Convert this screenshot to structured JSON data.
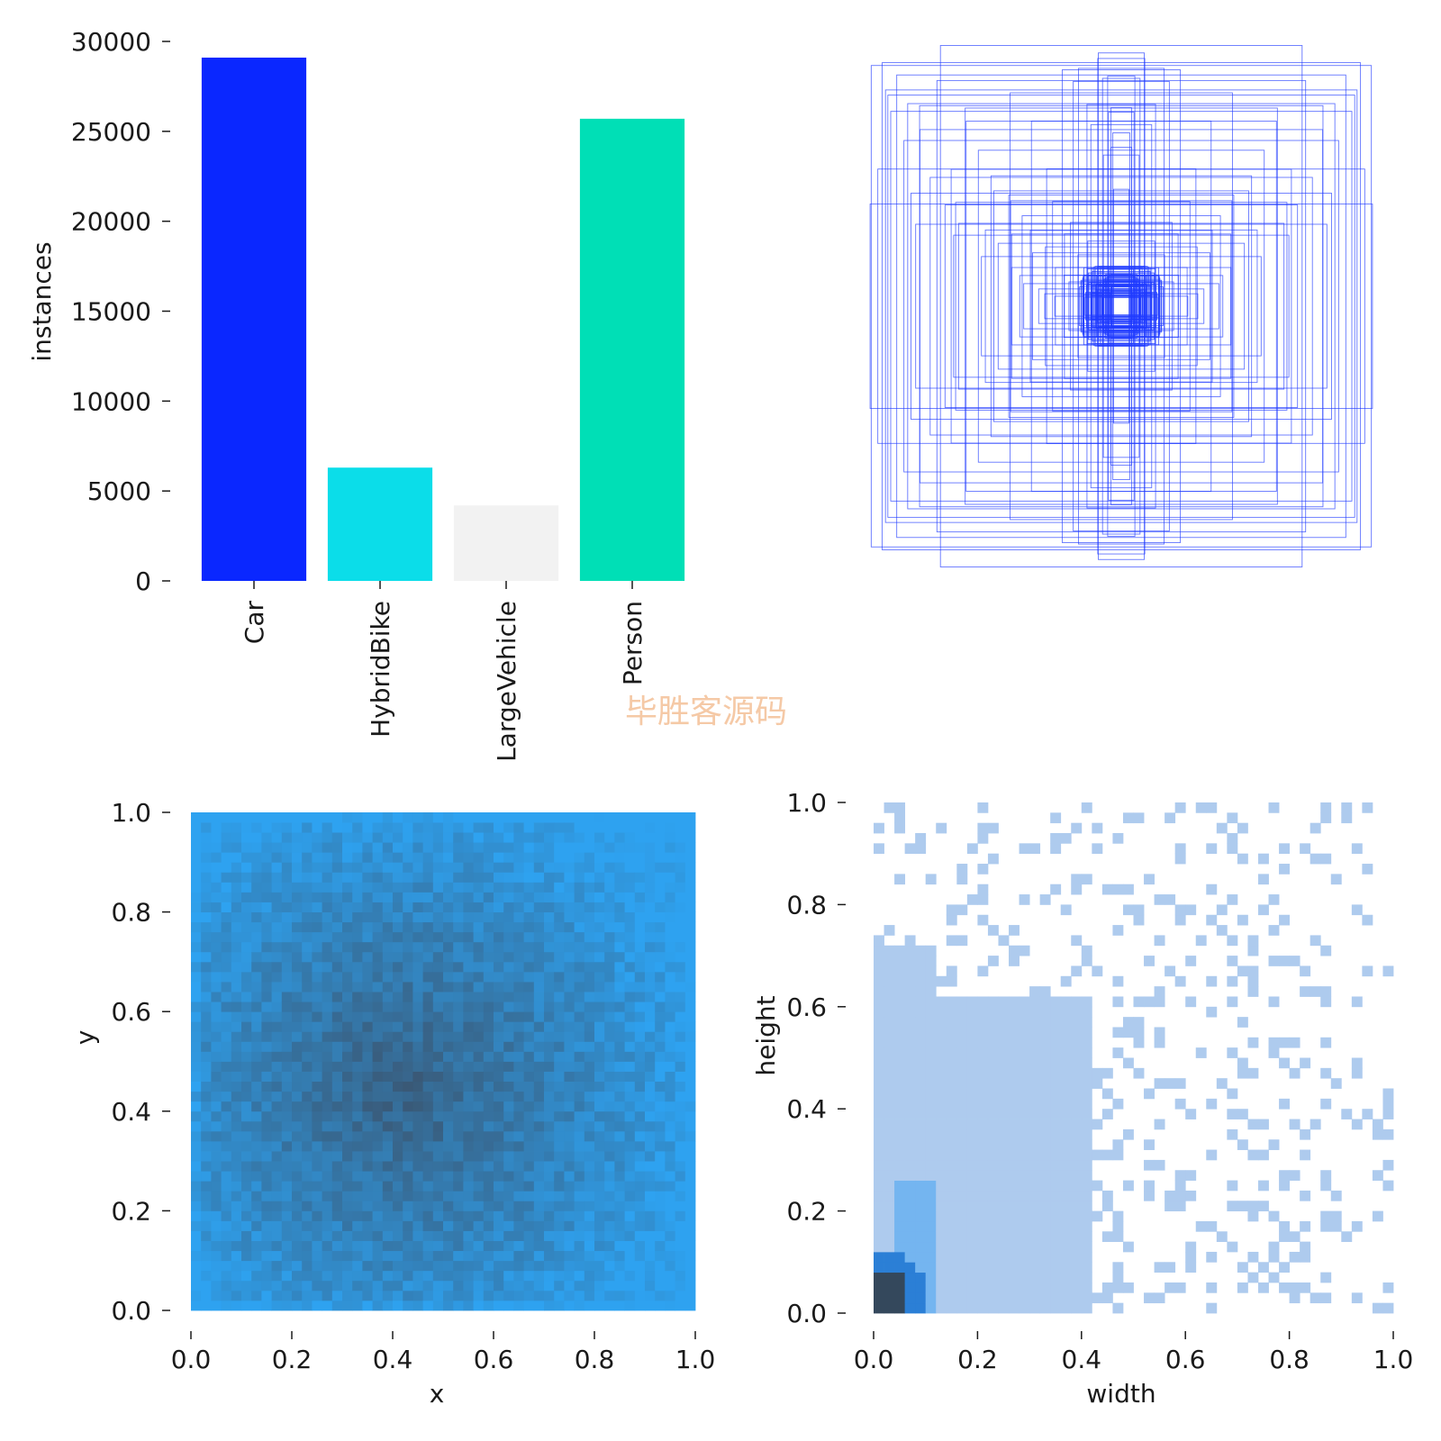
{
  "watermark": "毕胜客源码",
  "colors": {
    "Car": "#0a27ff",
    "HybridBike": "#0bdde9",
    "LargeVehicle": "#f2f2f2",
    "Person": "#00dfb6",
    "box_outline": "#1f3bff",
    "xy_light": "#2ea2f0",
    "xy_dark": "#3a5773",
    "wh_light": "#aecbee",
    "wh_mid": "#74b5f0",
    "wh_dark": "#2b7fd6",
    "wh_darkest": "#34485c"
  },
  "chart_data": [
    {
      "type": "bar",
      "name": "class-instances",
      "categories": [
        "Car",
        "HybridBike",
        "LargeVehicle",
        "Person"
      ],
      "values": [
        29100,
        6300,
        4200,
        25700
      ],
      "ylabel": "instances",
      "xlabel": "",
      "ylim": [
        0,
        30000
      ],
      "yticks": [
        "0",
        "5000",
        "10000",
        "15000",
        "20000",
        "25000",
        "30000"
      ]
    },
    {
      "type": "scatter",
      "name": "box-overlay",
      "title": "",
      "description_values": "centered bounding boxes of sampled labels",
      "widths": [
        0.93,
        0.91,
        0.84,
        0.79,
        0.74,
        0.69,
        0.62,
        0.58,
        0.52,
        0.47,
        0.43,
        0.39,
        0.35,
        0.32,
        0.28,
        0.25,
        0.22,
        0.19,
        0.16,
        0.13,
        0.11,
        0.09,
        0.07,
        0.05,
        0.04,
        0.03
      ],
      "heights": [
        0.91,
        0.83,
        0.88,
        0.73,
        0.68,
        0.96,
        0.55,
        0.78,
        0.62,
        0.44,
        0.86,
        0.38,
        0.71,
        0.3,
        0.52,
        0.41,
        0.26,
        0.33,
        0.2,
        0.24,
        0.15,
        0.12,
        0.09,
        0.07,
        0.05,
        0.04
      ]
    },
    {
      "type": "heatmap",
      "name": "xy-histogram",
      "xlabel": "x",
      "ylabel": "y",
      "xlim": [
        0.0,
        1.0
      ],
      "ylim": [
        0.0,
        1.0
      ],
      "xticks": [
        "0.0",
        "0.2",
        "0.4",
        "0.6",
        "0.8",
        "1.0"
      ],
      "yticks": [
        "0.0",
        "0.2",
        "0.4",
        "0.6",
        "0.8",
        "1.0"
      ],
      "bins": 50,
      "peak": [
        0.42,
        0.45
      ]
    },
    {
      "type": "heatmap",
      "name": "wh-histogram",
      "xlabel": "width",
      "ylabel": "height",
      "xlim": [
        0.0,
        1.0
      ],
      "ylim": [
        0.0,
        1.0
      ],
      "xticks": [
        "0.0",
        "0.2",
        "0.4",
        "0.6",
        "0.8",
        "1.0"
      ],
      "yticks": [
        "0.0",
        "0.2",
        "0.4",
        "0.6",
        "0.8",
        "1.0"
      ],
      "bins": 50,
      "peak": [
        0.02,
        0.04
      ]
    }
  ]
}
